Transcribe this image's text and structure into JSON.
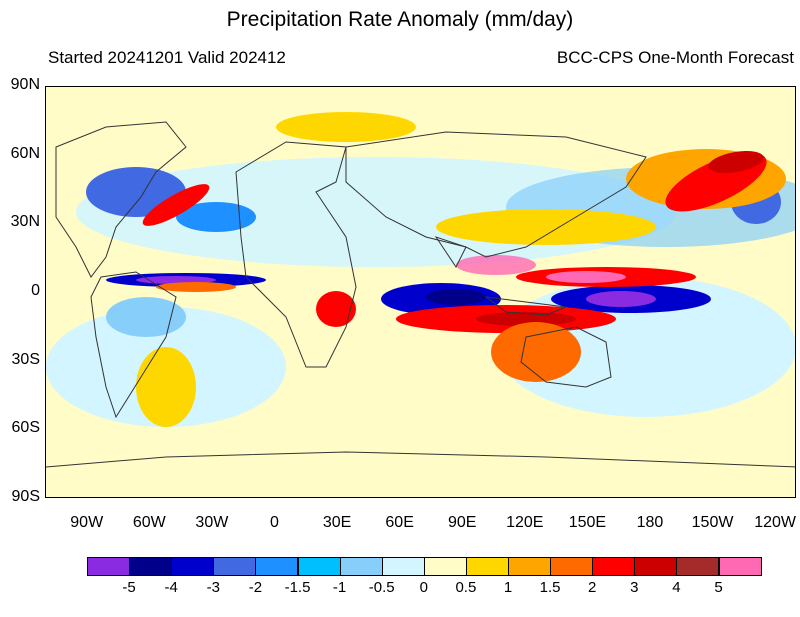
{
  "title": "Precipitation Rate Anomaly (mm/day)",
  "subtitle_left": "Started 20241201  Valid 202412",
  "subtitle_right": "BCC-CPS One-Month Forecast",
  "lat_labels": [
    "90N",
    "60N",
    "30N",
    "0",
    "30S",
    "60S",
    "90S"
  ],
  "lon_labels": [
    "90W",
    "60W",
    "30W",
    "0",
    "30E",
    "60E",
    "90E",
    "120E",
    "150E",
    "180",
    "150W",
    "120W"
  ],
  "colorbar": {
    "colors": [
      "#8a2be2",
      "#00008b",
      "#0000cd",
      "#4169e1",
      "#1e90ff",
      "#00bfff",
      "#87cefa",
      "#d2f5ff",
      "#fffcc8",
      "#ffd700",
      "#ffa500",
      "#ff6a00",
      "#ff0000",
      "#cd0000",
      "#a52a2a",
      "#ff69b4"
    ],
    "labels": [
      "-5",
      "-4",
      "-3",
      "-2",
      "-1.5",
      "-1",
      "-0.5",
      "0",
      "0.5",
      "1",
      "1.5",
      "2",
      "3",
      "4",
      "5"
    ]
  },
  "map": {
    "lon_range": [
      -110,
      250
    ],
    "lat_range": [
      -90,
      90
    ]
  }
}
